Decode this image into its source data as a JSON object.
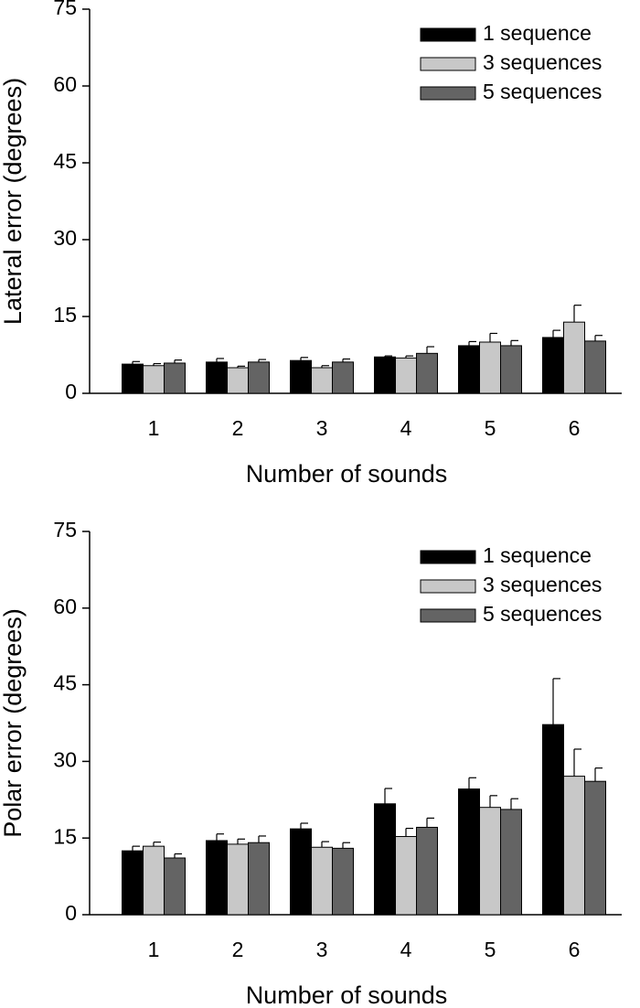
{
  "chart_data": [
    {
      "type": "bar",
      "x_label": "Number of sounds",
      "y_label": "Lateral error (degrees)",
      "categories": [
        "1",
        "2",
        "3",
        "4",
        "5",
        "6"
      ],
      "series": [
        {
          "name": "1 sequence",
          "color": "#000000",
          "values": [
            5.7,
            6.1,
            6.4,
            7.1,
            9.3,
            10.9
          ],
          "errors": [
            0.5,
            0.7,
            0.6,
            0.2,
            0.8,
            1.4
          ]
        },
        {
          "name": "3 sequences",
          "color": "#c8c8c8",
          "values": [
            5.4,
            5.0,
            5.0,
            6.9,
            10.0,
            13.9
          ],
          "errors": [
            0.4,
            0.3,
            0.4,
            0.4,
            1.7,
            3.3
          ]
        },
        {
          "name": "5 sequences",
          "color": "#646464",
          "values": [
            5.9,
            6.1,
            6.1,
            7.8,
            9.3,
            10.2
          ],
          "errors": [
            0.6,
            0.5,
            0.6,
            1.3,
            1.0,
            1.1
          ]
        }
      ],
      "ylim": [
        0,
        75
      ],
      "yticks": [
        0,
        15,
        30,
        45,
        60,
        75
      ],
      "legend": "upper right"
    },
    {
      "type": "bar",
      "x_label": "Number of sounds",
      "y_label": "Polar error (degrees)",
      "categories": [
        "1",
        "2",
        "3",
        "4",
        "5",
        "6"
      ],
      "series": [
        {
          "name": "1 sequence",
          "color": "#000000",
          "values": [
            12.5,
            14.5,
            16.8,
            21.7,
            24.6,
            37.2
          ],
          "errors": [
            0.9,
            1.3,
            1.1,
            3.0,
            2.2,
            9.0
          ]
        },
        {
          "name": "3 sequences",
          "color": "#c8c8c8",
          "values": [
            13.4,
            13.8,
            13.2,
            15.3,
            21.0,
            27.1
          ],
          "errors": [
            0.8,
            1.0,
            1.1,
            1.6,
            2.3,
            5.3
          ]
        },
        {
          "name": "5 sequences",
          "color": "#646464",
          "values": [
            11.1,
            14.1,
            13.0,
            17.1,
            20.6,
            26.1
          ],
          "errors": [
            0.8,
            1.3,
            1.1,
            1.8,
            2.1,
            2.6
          ]
        }
      ],
      "ylim": [
        0,
        75
      ],
      "yticks": [
        0,
        15,
        30,
        45,
        60,
        75
      ],
      "legend": "upper right"
    }
  ]
}
